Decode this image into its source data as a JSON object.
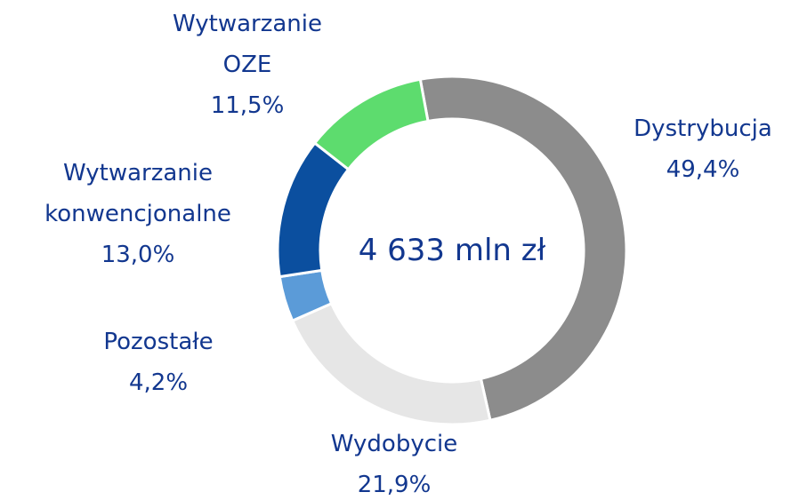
{
  "chart_data": {
    "type": "donut",
    "center_label": "4 633 mln zł",
    "categories": [
      "Dystrybucja",
      "Wydobycie",
      "Pozostałe",
      "Wytwarzanie\nkonwencjonalne",
      "Wytwarzanie\nOZE"
    ],
    "values": [
      49.4,
      21.9,
      4.2,
      13.0,
      11.5
    ],
    "value_labels": [
      "49,4%",
      "21,9%",
      "4,2%",
      "13,0%",
      "11,5%"
    ],
    "colors": [
      "#8c8c8c",
      "#e6e6e6",
      "#5b9bd8",
      "#0b4f9f",
      "#5ddc6e"
    ]
  }
}
